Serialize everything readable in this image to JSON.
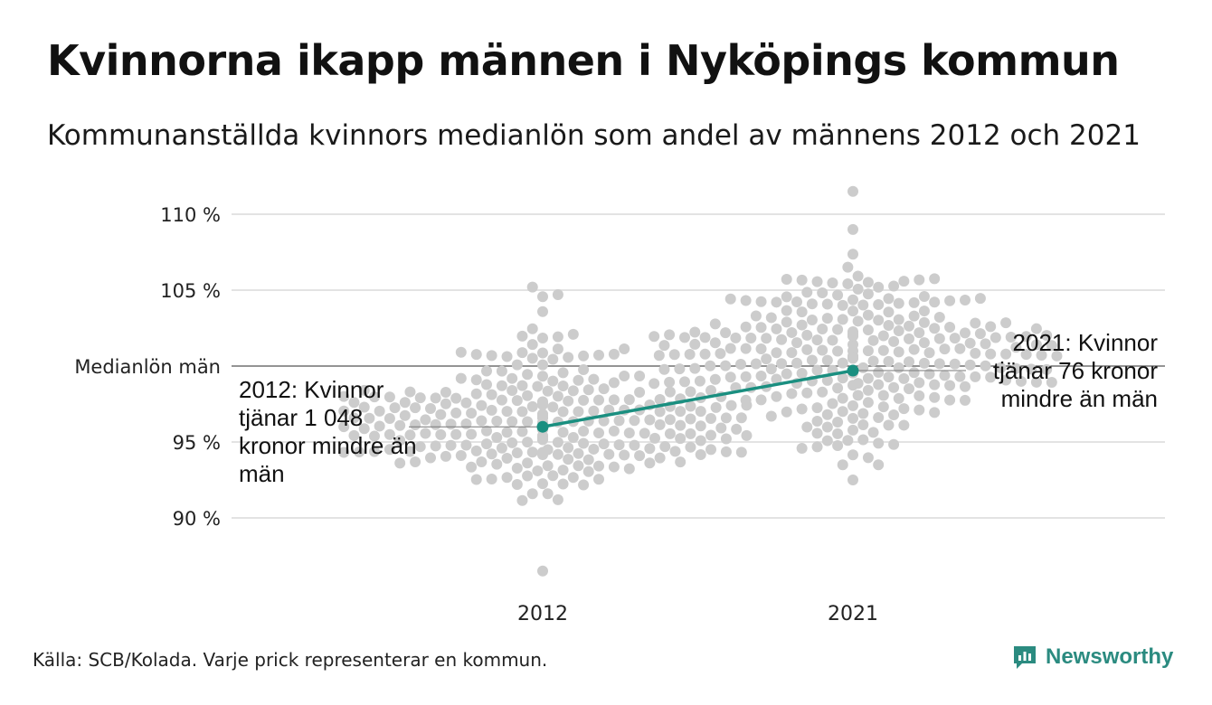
{
  "title": "Kvinnorna ikapp männen i Nyköpings kommun",
  "subtitle": "Kommunanställda kvinnors medianlön som andel av männens 2012 och 2021",
  "source": "Källa: SCB/Kolada. Varje prick representerar en kommun.",
  "brand": {
    "name": "Newsworthy",
    "color": "#2b8b80",
    "icon": "newsworthy-logo-icon"
  },
  "annotations": {
    "y2012": "2012: Kvinnor tjänar 1 048 kronor mindre än män",
    "y2021": "2021: Kvinnor tjänar 76 kronor mindre än män"
  },
  "colors": {
    "dots": "#cccccc",
    "highlight": "#1a8f80",
    "grid": "#e3e3e3",
    "reference": "#555555"
  },
  "chart_data": {
    "type": "scatter",
    "subtype": "beeswarm",
    "categories": [
      "2012",
      "2021"
    ],
    "y_ticks": [
      {
        "value": 90,
        "label": "90 %"
      },
      {
        "value": 95,
        "label": "95 %"
      },
      {
        "value": 105,
        "label": "105 %"
      },
      {
        "value": 110,
        "label": "110 %"
      }
    ],
    "reference_line": {
      "value": 100,
      "label": "Medianlön män"
    },
    "ylim": [
      86.5,
      111.5
    ],
    "grid": true,
    "highlight": {
      "values": [
        96.0,
        99.7
      ]
    },
    "distributions": [
      {
        "category": "2012",
        "count": 290,
        "center": 96.3,
        "spread": 2.5,
        "min": 86.5,
        "max": 105.2
      },
      {
        "category": "2021",
        "count": 290,
        "center": 101.0,
        "spread": 2.6,
        "min": 92.5,
        "max": 111.5
      }
    ]
  }
}
